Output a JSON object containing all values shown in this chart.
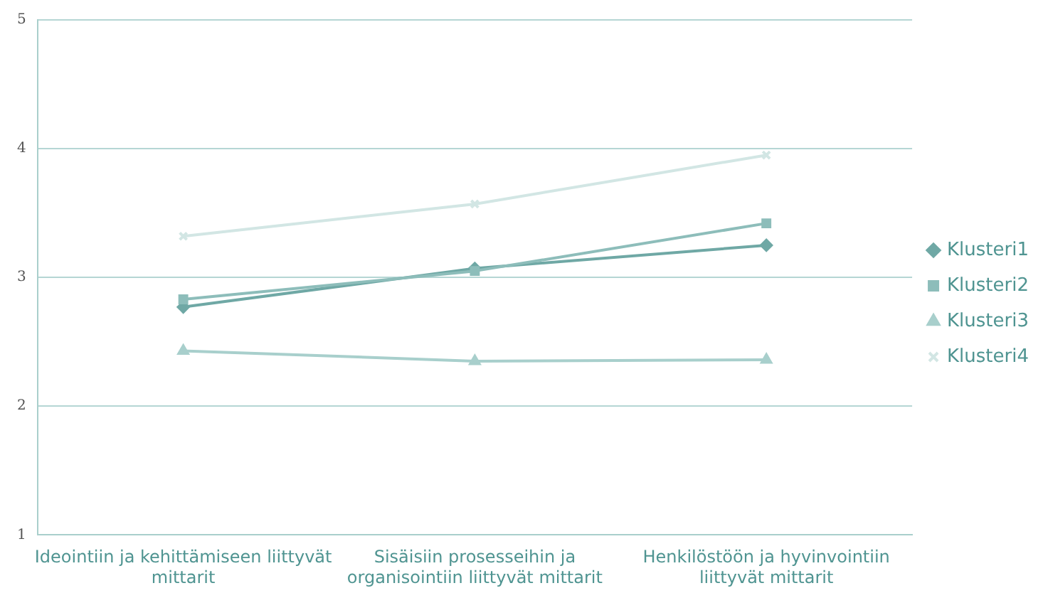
{
  "chart_data": {
    "type": "line",
    "categories": [
      "Ideointiin ja kehittämiseen liittyvät mittarit",
      "Sisäisiin prosesseihin ja organisointiin liittyvät mittarit",
      "Henkilöstöön ja hyvinvointiin liittyvät mittarit"
    ],
    "ylim": [
      1,
      5
    ],
    "yticks": [
      1,
      2,
      3,
      4,
      5
    ],
    "grid": "y",
    "legend": "right",
    "series": [
      {
        "name": "Klusteri1",
        "color": "#6fa8a5",
        "marker": "diamond",
        "values": [
          2.77,
          3.07,
          3.25
        ]
      },
      {
        "name": "Klusteri2",
        "color": "#8dbdba",
        "marker": "square",
        "values": [
          2.83,
          3.05,
          3.42
        ]
      },
      {
        "name": "Klusteri3",
        "color": "#a8cfcc",
        "marker": "triangle",
        "values": [
          2.43,
          2.35,
          2.36
        ]
      },
      {
        "name": "Klusteri4",
        "color": "#d2e6e4",
        "marker": "cross",
        "values": [
          3.32,
          3.57,
          3.95
        ]
      }
    ]
  }
}
